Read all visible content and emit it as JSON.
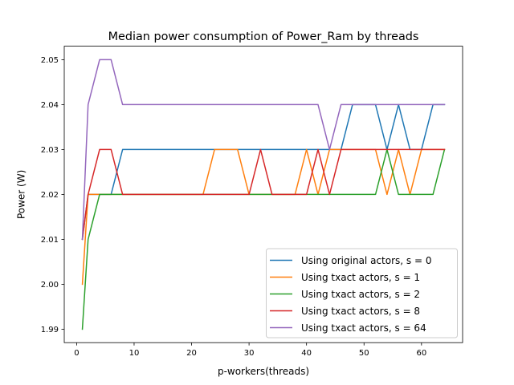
{
  "chart_data": {
    "type": "line",
    "title": "Median power consumption of Power_Ram by threads",
    "xlabel": "p-workers(threads)",
    "ylabel": "Power (W)",
    "xlim": [
      -2.15,
      67.15
    ],
    "ylim": [
      1.987,
      2.053
    ],
    "xticks": [
      0,
      10,
      20,
      30,
      40,
      50,
      60
    ],
    "yticks": [
      1.99,
      2.0,
      2.01,
      2.02,
      2.03,
      2.04,
      2.05
    ],
    "ytick_labels": [
      "1.99",
      "2.00",
      "2.01",
      "2.02",
      "2.03",
      "2.04",
      "2.05"
    ],
    "grid": false,
    "legend_position": "lower-right",
    "x": [
      1,
      2,
      4,
      6,
      8,
      10,
      12,
      14,
      16,
      18,
      20,
      22,
      24,
      26,
      28,
      30,
      32,
      34,
      36,
      38,
      40,
      42,
      44,
      46,
      48,
      50,
      52,
      54,
      56,
      58,
      60,
      62,
      64
    ],
    "series": [
      {
        "name": "Using original actors, s = 0",
        "color": "#1f77b4",
        "values": [
          2.01,
          2.02,
          2.02,
          2.02,
          2.03,
          2.03,
          2.03,
          2.03,
          2.03,
          2.03,
          2.03,
          2.03,
          2.03,
          2.03,
          2.03,
          2.03,
          2.03,
          2.03,
          2.03,
          2.03,
          2.03,
          2.03,
          2.03,
          2.03,
          2.04,
          2.04,
          2.04,
          2.03,
          2.04,
          2.03,
          2.03,
          2.04,
          2.04
        ]
      },
      {
        "name": "Using txact actors, s = 1",
        "color": "#ff7f0e",
        "values": [
          2.0,
          2.02,
          2.02,
          2.02,
          2.02,
          2.02,
          2.02,
          2.02,
          2.02,
          2.02,
          2.02,
          2.02,
          2.03,
          2.03,
          2.03,
          2.02,
          2.02,
          2.02,
          2.02,
          2.02,
          2.03,
          2.02,
          2.03,
          2.03,
          2.03,
          2.03,
          2.03,
          2.02,
          2.03,
          2.02,
          2.03,
          2.03,
          2.03
        ]
      },
      {
        "name": "Using txact actors, s = 2",
        "color": "#2ca02c",
        "values": [
          1.99,
          2.01,
          2.02,
          2.02,
          2.02,
          2.02,
          2.02,
          2.02,
          2.02,
          2.02,
          2.02,
          2.02,
          2.02,
          2.02,
          2.02,
          2.02,
          2.02,
          2.02,
          2.02,
          2.02,
          2.02,
          2.02,
          2.02,
          2.02,
          2.02,
          2.02,
          2.02,
          2.03,
          2.02,
          2.02,
          2.02,
          2.02,
          2.03
        ]
      },
      {
        "name": "Using txact actors, s = 8",
        "color": "#d62728",
        "values": [
          2.01,
          2.02,
          2.03,
          2.03,
          2.02,
          2.02,
          2.02,
          2.02,
          2.02,
          2.02,
          2.02,
          2.02,
          2.02,
          2.02,
          2.02,
          2.02,
          2.03,
          2.02,
          2.02,
          2.02,
          2.02,
          2.03,
          2.02,
          2.03,
          2.03,
          2.03,
          2.03,
          2.03,
          2.03,
          2.03,
          2.03,
          2.03,
          2.03
        ]
      },
      {
        "name": "Using txact actors, s = 64",
        "color": "#9467bd",
        "values": [
          2.01,
          2.04,
          2.05,
          2.05,
          2.04,
          2.04,
          2.04,
          2.04,
          2.04,
          2.04,
          2.04,
          2.04,
          2.04,
          2.04,
          2.04,
          2.04,
          2.04,
          2.04,
          2.04,
          2.04,
          2.04,
          2.04,
          2.03,
          2.04,
          2.04,
          2.04,
          2.04,
          2.04,
          2.04,
          2.04,
          2.04,
          2.04,
          2.04
        ]
      }
    ]
  }
}
